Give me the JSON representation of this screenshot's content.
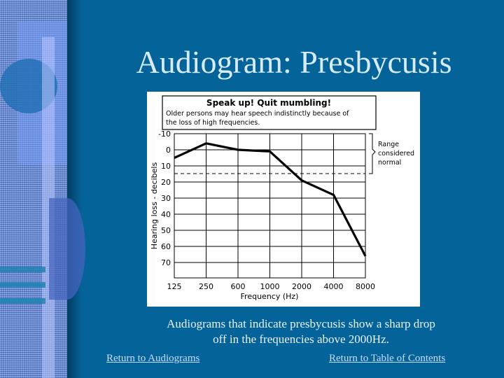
{
  "slide": {
    "title": "Audiogram: Presbycusis",
    "caption_line1": "Audiograms that indicate presbycusis show a sharp drop",
    "caption_line2": "off in the frequencies above 2000Hz.",
    "links": {
      "audiograms": "Return to Audiograms",
      "toc": "Return to Table of Contents"
    },
    "colors": {
      "background": "#04649a",
      "title": "#d6ecfb",
      "link": "#c6dcff"
    }
  },
  "chart": {
    "header_title": "Speak up! Quit mumbling!",
    "header_line1": "Older persons may hear speech indistinctly because of",
    "header_line2": "the loss of high frequencies.",
    "range_label1": "Range",
    "range_label2": "considered",
    "range_label3": "normal",
    "ylabel": "Hearing loss - decibels",
    "xlabel": "Frequency (Hz)"
  },
  "chart_data": {
    "type": "line",
    "title": "Speak up! Quit mumbling!",
    "subtitle": "Older persons may hear speech indistinctly because of the loss of high frequencies.",
    "xlabel": "Frequency (Hz)",
    "ylabel": "Hearing loss - decibels",
    "categories": [
      "125",
      "250",
      "600",
      "1000",
      "2000",
      "4000",
      "8000"
    ],
    "y_ticks": [
      "-10",
      "0",
      "10",
      "20",
      "30",
      "40",
      "50",
      "60",
      "70"
    ],
    "ylim": [
      -10,
      79
    ],
    "y_inverted": true,
    "grid": true,
    "series": [
      {
        "name": "Presbycusis",
        "values": [
          5,
          -4,
          0,
          1,
          19,
          28,
          66
        ]
      }
    ],
    "annotations": [
      {
        "type": "dashed-line",
        "y": 15,
        "label": "Range considered normal (-10 to 15 dB)"
      }
    ]
  }
}
